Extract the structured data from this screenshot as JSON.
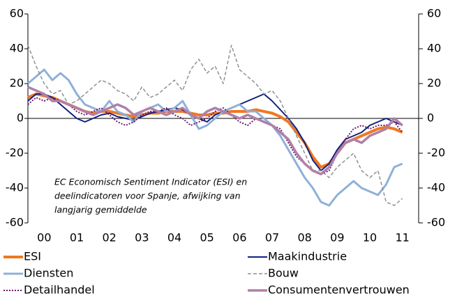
{
  "chart_data": {
    "type": "line",
    "annotation": [
      "EC Economisch Sentiment Indicator (ESI) en",
      "deelindicatoren voor Spanje, afwijking van",
      "langjarig gemiddelde"
    ],
    "x": [
      2000,
      2000.25,
      2000.5,
      2000.75,
      2001,
      2001.25,
      2001.5,
      2001.75,
      2002,
      2002.25,
      2002.5,
      2002.75,
      2003,
      2003.25,
      2003.5,
      2003.75,
      2004,
      2004.25,
      2004.5,
      2004.75,
      2005,
      2005.25,
      2005.5,
      2005.75,
      2006,
      2006.25,
      2006.5,
      2006.75,
      2007,
      2007.25,
      2007.5,
      2007.75,
      2008,
      2008.25,
      2008.5,
      2008.75,
      2009,
      2009.25,
      2009.5,
      2009.75,
      2010,
      2010.25,
      2010.5,
      2010.75,
      2011,
      2011.25,
      2011.5
    ],
    "xlim": [
      2000,
      2012
    ],
    "xticks": [
      {
        "value": 2000.5,
        "label": "00"
      },
      {
        "value": 2001.5,
        "label": "01"
      },
      {
        "value": 2002.5,
        "label": "02"
      },
      {
        "value": 2003.5,
        "label": "03"
      },
      {
        "value": 2004.5,
        "label": "04"
      },
      {
        "value": 2005.5,
        "label": "05"
      },
      {
        "value": 2006.5,
        "label": "06"
      },
      {
        "value": 2007.5,
        "label": "07"
      },
      {
        "value": 2008.5,
        "label": "08"
      },
      {
        "value": 2009.5,
        "label": "09"
      },
      {
        "value": 2010.5,
        "label": "10"
      },
      {
        "value": 2011.5,
        "label": "11"
      }
    ],
    "ylim": [
      -60,
      60
    ],
    "yticks": [
      -60,
      -40,
      -20,
      0,
      20,
      40,
      60
    ],
    "y2lim": [
      -60,
      60
    ],
    "y2ticks": [
      -60,
      -40,
      -20,
      0,
      20,
      40,
      60
    ],
    "series": [
      {
        "name": "ESI",
        "color": "#f07820",
        "style": "solid",
        "values": [
          12,
          14,
          13,
          12,
          10,
          8,
          6,
          4,
          3,
          4,
          4,
          3,
          2,
          1,
          2,
          3,
          3,
          4,
          4,
          4,
          3,
          2,
          2,
          3,
          3,
          4,
          4,
          4,
          5,
          4,
          3,
          1,
          -2,
          -8,
          -14,
          -22,
          -28,
          -26,
          -20,
          -14,
          -12,
          -10,
          -8,
          -6,
          -5,
          -6,
          -8
        ]
      },
      {
        "name": "Maakindustrie",
        "color": "#102080",
        "style": "solid",
        "values": [
          10,
          14,
          14,
          12,
          8,
          4,
          0,
          -2,
          0,
          2,
          3,
          1,
          0,
          -1,
          1,
          3,
          4,
          5,
          6,
          5,
          2,
          0,
          -2,
          2,
          4,
          6,
          8,
          10,
          12,
          14,
          10,
          5,
          0,
          -6,
          -14,
          -24,
          -30,
          -26,
          -18,
          -12,
          -10,
          -8,
          -4,
          -2,
          0,
          -2,
          -4
        ]
      },
      {
        "name": "Diensten",
        "color": "#8fb0d8",
        "style": "solid",
        "values": [
          20,
          24,
          28,
          22,
          26,
          22,
          14,
          8,
          6,
          4,
          10,
          4,
          2,
          -2,
          4,
          6,
          8,
          4,
          6,
          10,
          2,
          -6,
          -4,
          0,
          4,
          6,
          8,
          4,
          4,
          0,
          -4,
          -10,
          -18,
          -26,
          -34,
          -40,
          -48,
          -50,
          -44,
          -40,
          -36,
          -40,
          -42,
          -44,
          -38,
          -28,
          -26
        ]
      },
      {
        "name": "Bouw",
        "color": "#909090",
        "style": "dashed",
        "values": [
          42,
          30,
          20,
          14,
          16,
          8,
          10,
          14,
          18,
          22,
          20,
          16,
          14,
          10,
          18,
          12,
          14,
          18,
          22,
          16,
          28,
          34,
          26,
          30,
          20,
          42,
          28,
          24,
          20,
          14,
          16,
          10,
          0,
          -10,
          -20,
          -30,
          -30,
          -34,
          -28,
          -24,
          -20,
          -30,
          -34,
          -30,
          -48,
          -50,
          -46
        ]
      },
      {
        "name": "Detailhandel",
        "color": "#6a1a6a",
        "style": "dotted",
        "values": [
          8,
          12,
          10,
          12,
          10,
          8,
          4,
          2,
          4,
          6,
          2,
          -2,
          -4,
          -2,
          2,
          4,
          4,
          6,
          2,
          0,
          -4,
          -2,
          0,
          4,
          6,
          2,
          -2,
          -4,
          0,
          -2,
          -4,
          -6,
          -14,
          -22,
          -26,
          -30,
          -32,
          -30,
          -20,
          -12,
          -6,
          -4,
          -6,
          -4,
          -4,
          -2,
          -8
        ]
      },
      {
        "name": "Consumentenvertrouwen",
        "color": "#b080a8",
        "style": "solid",
        "values": [
          18,
          16,
          14,
          10,
          10,
          8,
          6,
          4,
          2,
          4,
          6,
          8,
          6,
          2,
          4,
          6,
          4,
          2,
          4,
          6,
          2,
          0,
          4,
          6,
          4,
          2,
          0,
          2,
          0,
          -2,
          -4,
          -8,
          -12,
          -20,
          -26,
          -30,
          -32,
          -28,
          -20,
          -14,
          -12,
          -14,
          -10,
          -8,
          -6,
          0,
          -4
        ]
      }
    ]
  }
}
